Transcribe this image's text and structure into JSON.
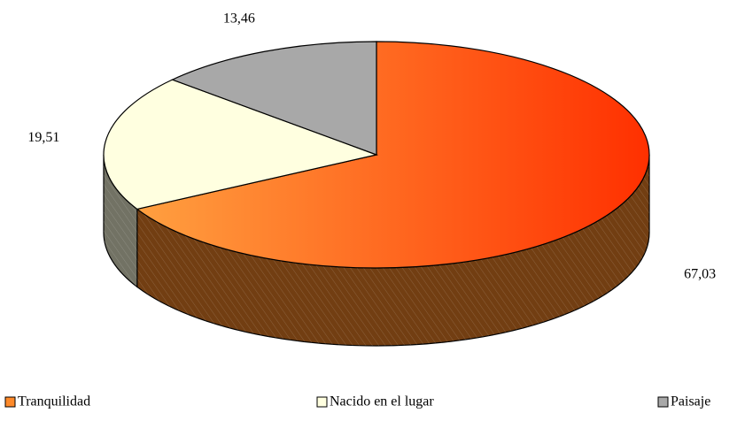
{
  "chart_data": {
    "type": "pie",
    "categories": [
      "Tranquilidad",
      "Nacido en el lugar",
      "Paisaje"
    ],
    "values": [
      67.03,
      19.51,
      13.46
    ],
    "value_labels": [
      "67,03",
      "19,51",
      "13,46"
    ],
    "colors": [
      "#ff8a2a",
      "#ffffe0",
      "#a8a8a8"
    ],
    "legend": "bottom"
  }
}
